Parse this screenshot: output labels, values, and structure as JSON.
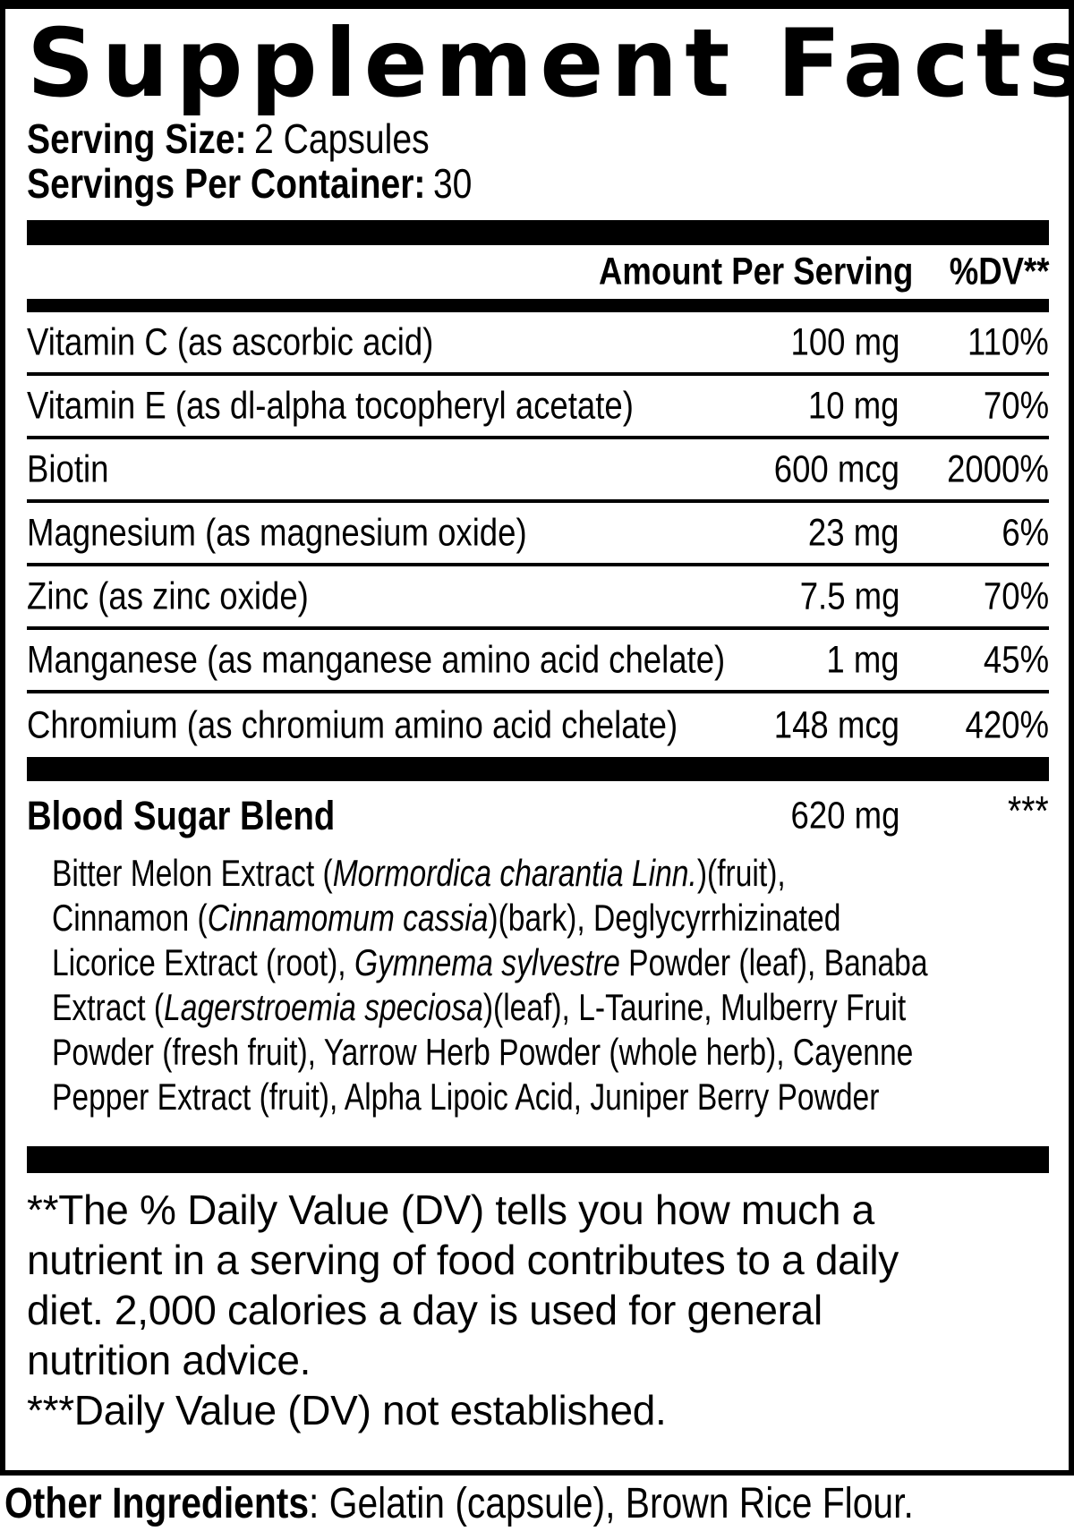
{
  "label": {
    "title": "Supplement Facts",
    "serving_size_label": "Serving Size:",
    "serving_size_value": "2 Capsules",
    "servings_per_container_label": "Servings Per Container:",
    "servings_per_container_value": "30",
    "header": {
      "amount": "Amount Per Serving",
      "dv": "%DV**"
    },
    "nutrients": [
      {
        "name": "Vitamin C (as ascorbic acid)",
        "amount": "100 mg",
        "dv": "110%"
      },
      {
        "name": "Vitamin E (as dl-alpha tocopheryl acetate)",
        "amount": "10 mg",
        "dv": "70%"
      },
      {
        "name": "Biotin",
        "amount": "600 mcg",
        "dv": "2000%"
      },
      {
        "name": "Magnesium (as magnesium oxide)",
        "amount": "23 mg",
        "dv": "6%"
      },
      {
        "name": "Zinc (as zinc oxide)",
        "amount": "7.5 mg",
        "dv": "70%"
      },
      {
        "name": "Manganese (as manganese amino acid chelate)",
        "amount": "1 mg",
        "dv": "45%"
      },
      {
        "name": "Chromium (as chromium amino acid chelate)",
        "amount": "148 mcg",
        "dv": "420%"
      }
    ],
    "blend": {
      "name": "Blood Sugar Blend",
      "amount": "620 mg",
      "dv": "***",
      "description_lines": [
        [
          {
            "t": "Bitter Melon Extract ("
          },
          {
            "t": "Mormordica charantia Linn.",
            "i": true
          },
          {
            "t": ")(fruit),"
          }
        ],
        [
          {
            "t": "Cinnamon ("
          },
          {
            "t": "Cinnamomum cassia",
            "i": true
          },
          {
            "t": ")(bark), Deglycyrrhizinated"
          }
        ],
        [
          {
            "t": "Licorice Extract (root), "
          },
          {
            "t": "Gymnema sylvestre",
            "i": true
          },
          {
            "t": " Powder (leaf), Banaba"
          }
        ],
        [
          {
            "t": "Extract ("
          },
          {
            "t": "Lagerstroemia speciosa",
            "i": true
          },
          {
            "t": ")(leaf), L-Taurine, Mulberry Fruit"
          }
        ],
        [
          {
            "t": "Powder (fresh fruit), Yarrow Herb Powder (whole herb), Cayenne"
          }
        ],
        [
          {
            "t": "Pepper Extract (fruit), Alpha Lipoic Acid, Juniper Berry Powder"
          }
        ]
      ]
    },
    "footnote_lines": [
      "**The % Daily Value (DV) tells you how much a",
      "nutrient in a serving of food contributes to a daily",
      "diet. 2,000 calories a day is used for general",
      "nutrition advice.",
      "***Daily Value (DV) not established."
    ],
    "other_ingredients_label": "Other Ingredients",
    "other_ingredients_value": ": Gelatin (capsule), Brown Rice Flour.",
    "colors": {
      "ink": "#000000",
      "paper": "#ffffff"
    }
  }
}
